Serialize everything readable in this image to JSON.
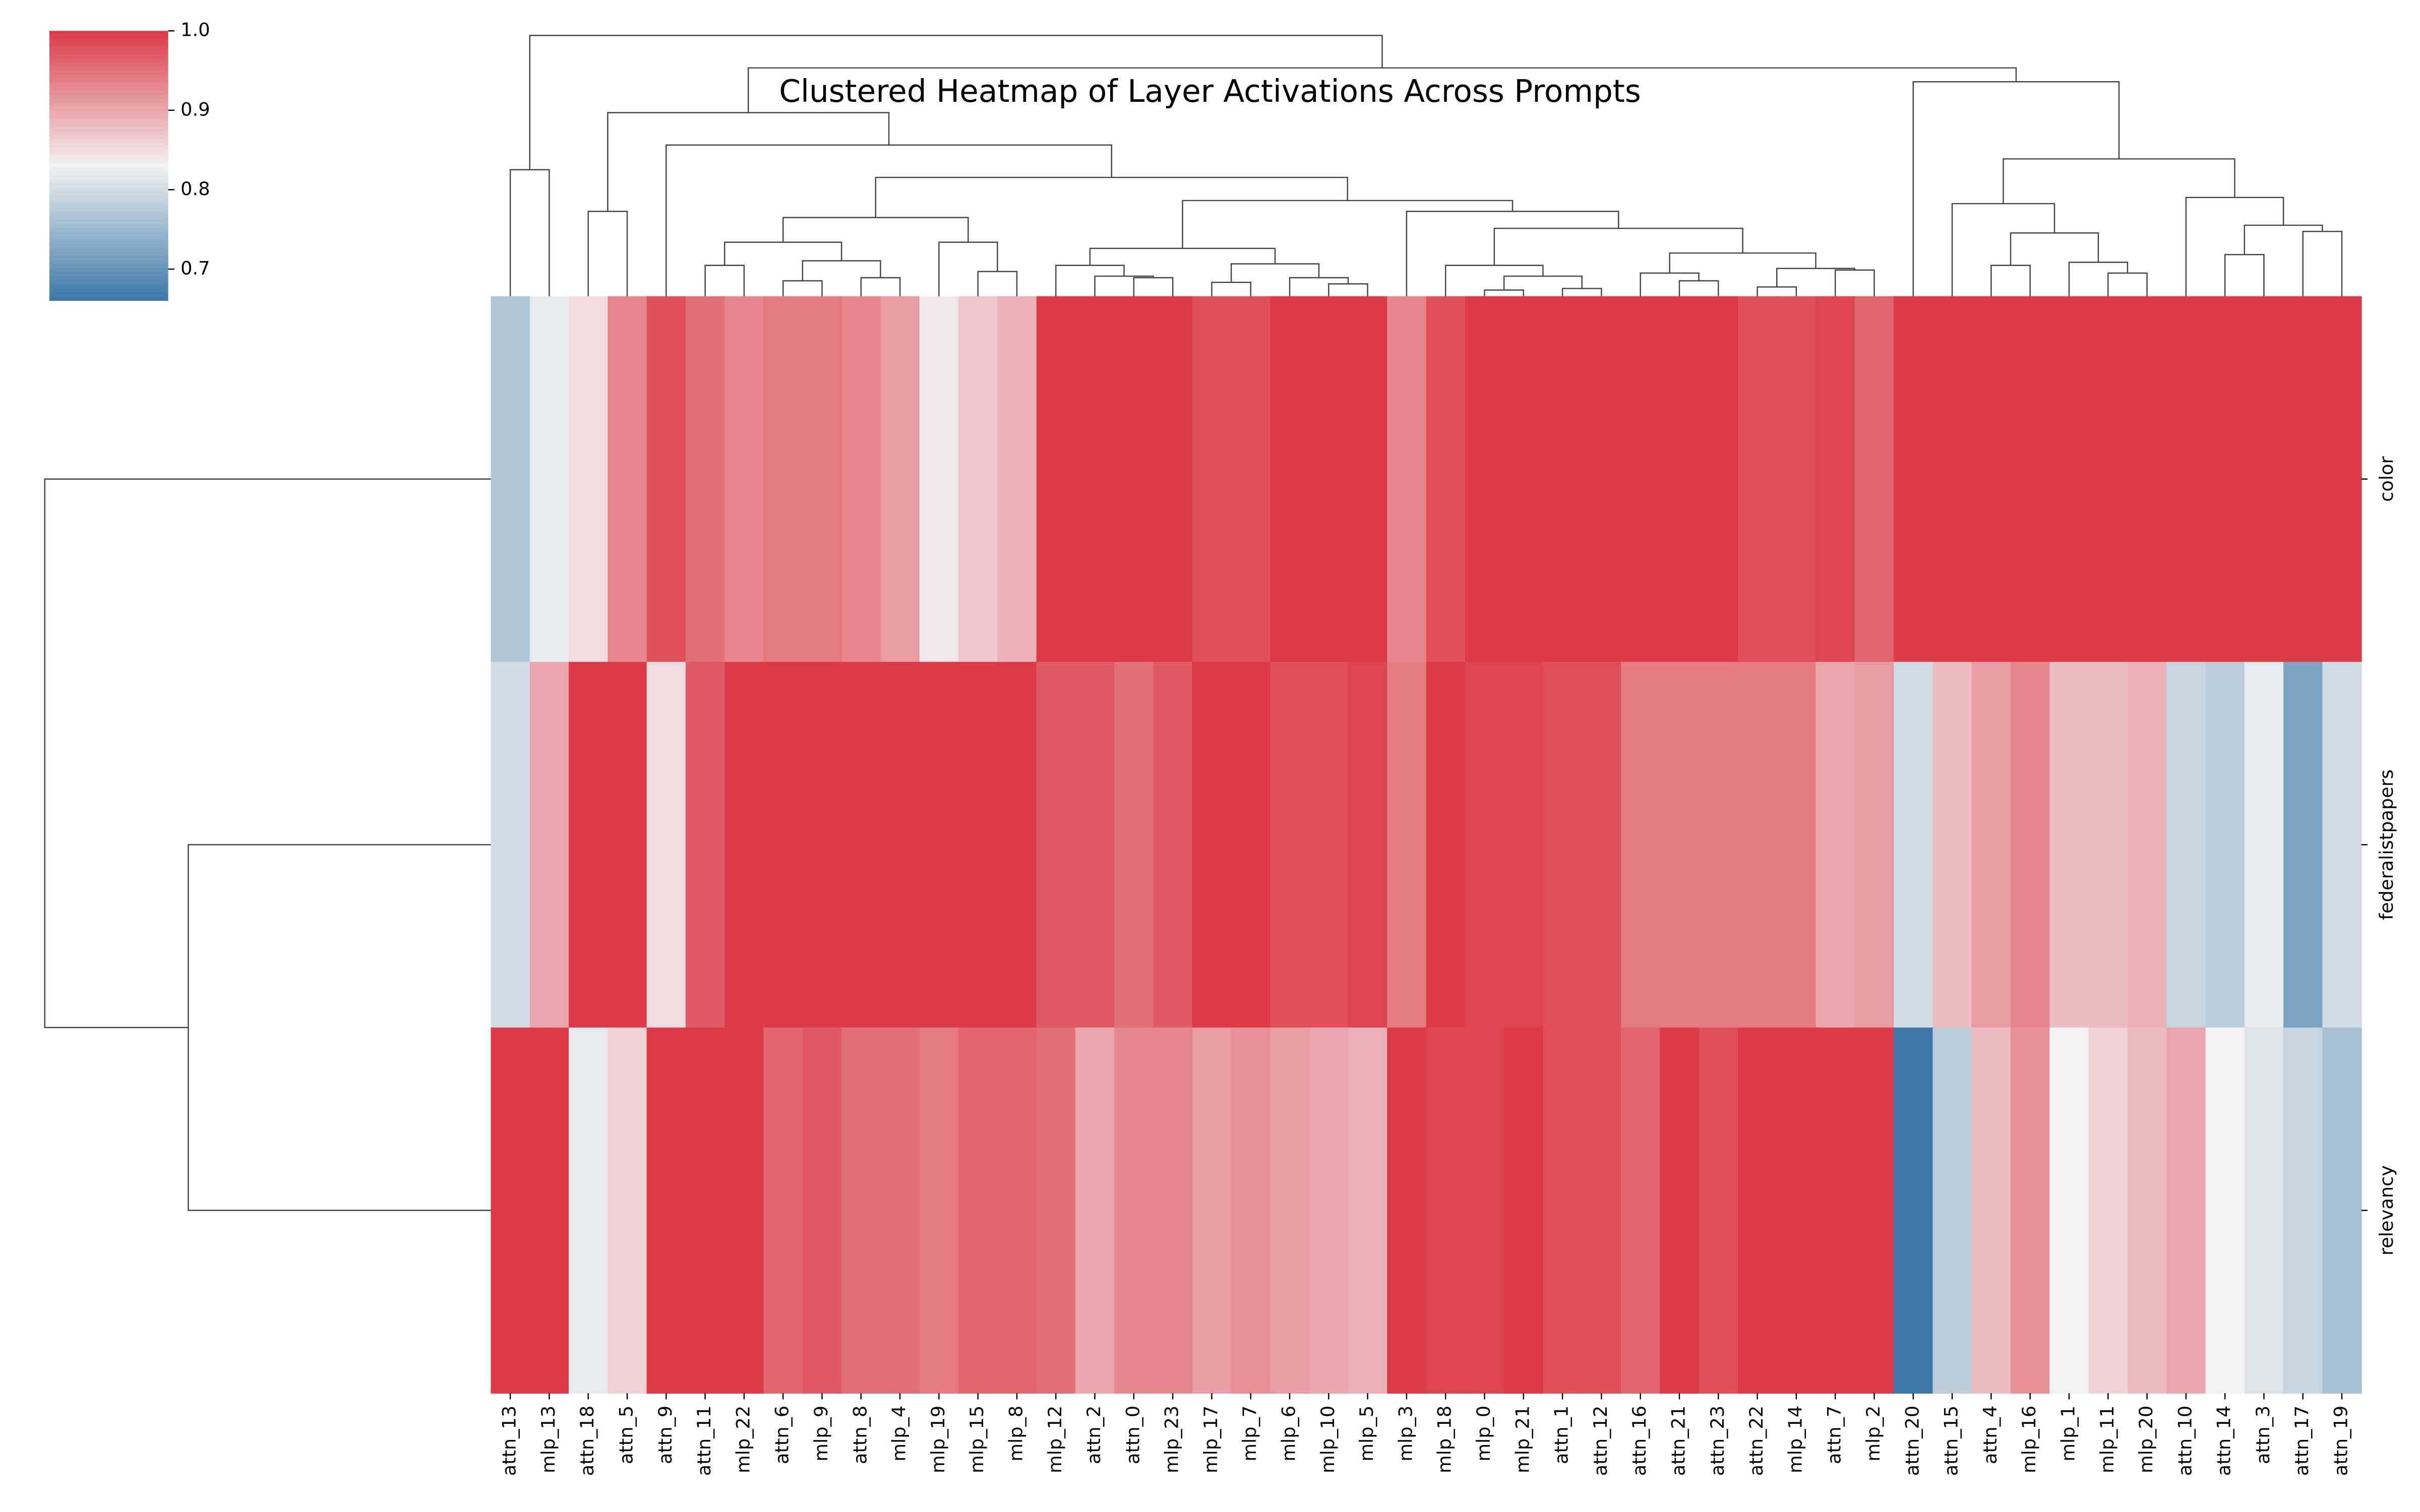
{
  "chart_data": {
    "type": "heatmap",
    "title": "Clustered Heatmap of Layer Activations Across Prompts",
    "x_categories": [
      "attn_13",
      "mlp_13",
      "attn_18",
      "attn_5",
      "attn_9",
      "attn_11",
      "mlp_22",
      "attn_6",
      "mlp_9",
      "attn_8",
      "mlp_4",
      "mlp_19",
      "mlp_15",
      "mlp_8",
      "mlp_12",
      "attn_2",
      "attn_0",
      "mlp_23",
      "mlp_17",
      "mlp_7",
      "mlp_6",
      "mlp_10",
      "mlp_5",
      "mlp_3",
      "mlp_18",
      "mlp_0",
      "mlp_21",
      "attn_1",
      "attn_12",
      "attn_16",
      "attn_21",
      "attn_23",
      "attn_22",
      "mlp_14",
      "attn_7",
      "mlp_2",
      "attn_20",
      "attn_15",
      "attn_4",
      "mlp_16",
      "mlp_1",
      "mlp_11",
      "mlp_20",
      "attn_10",
      "attn_14",
      "attn_3",
      "attn_17",
      "attn_19"
    ],
    "y_categories": [
      "color",
      "federalistpapers",
      "relevancy"
    ],
    "values": [
      [
        0.77,
        0.82,
        0.85,
        0.93,
        0.98,
        0.95,
        0.93,
        0.94,
        0.94,
        0.93,
        0.91,
        0.84,
        0.87,
        0.89,
        1.0,
        1.0,
        1.0,
        1.0,
        0.98,
        0.98,
        1.0,
        1.0,
        1.0,
        0.93,
        0.98,
        1.0,
        1.0,
        1.0,
        1.0,
        1.0,
        1.0,
        1.0,
        0.98,
        0.98,
        0.99,
        0.96,
        1.0,
        1.0,
        1.0,
        1.0,
        1.0,
        1.0,
        1.0,
        1.0,
        1.0,
        1.0,
        1.0,
        1.0
      ],
      [
        0.8,
        0.9,
        1.0,
        1.0,
        0.85,
        0.97,
        1.0,
        1.0,
        1.0,
        1.0,
        1.0,
        1.0,
        1.0,
        1.0,
        0.97,
        0.97,
        0.95,
        0.97,
        1.0,
        1.0,
        0.98,
        0.98,
        0.99,
        0.94,
        1.0,
        0.99,
        0.99,
        0.98,
        0.98,
        0.94,
        0.94,
        0.94,
        0.94,
        0.94,
        0.9,
        0.91,
        0.8,
        0.88,
        0.91,
        0.93,
        0.88,
        0.88,
        0.89,
        0.79,
        0.78,
        0.82,
        0.72,
        0.8
      ],
      [
        1.0,
        1.0,
        0.82,
        0.86,
        1.0,
        1.0,
        1.0,
        0.96,
        0.97,
        0.95,
        0.95,
        0.94,
        0.96,
        0.96,
        0.95,
        0.9,
        0.93,
        0.93,
        0.91,
        0.92,
        0.91,
        0.9,
        0.89,
        1.0,
        0.99,
        0.99,
        1.0,
        0.98,
        0.98,
        0.96,
        1.0,
        0.98,
        1.0,
        1.0,
        1.0,
        1.0,
        0.66,
        0.78,
        0.88,
        0.92,
        0.83,
        0.86,
        0.88,
        0.9,
        0.83,
        0.81,
        0.79,
        0.76
      ]
    ],
    "colormap": [
      "#3b78a8",
      "#f2f2f2",
      "#dc3a47"
    ],
    "colorbar_lim": [
      0.66,
      1.0
    ],
    "colorbar_ticks": [
      0.7,
      0.8,
      0.9,
      {
        "value": 1.0,
        "label": "1.0"
      }
    ]
  }
}
